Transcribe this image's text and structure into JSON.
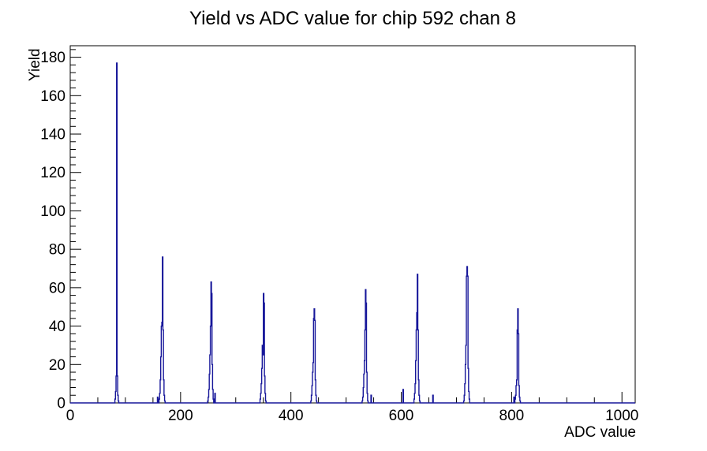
{
  "title": "Yield vs ADC value for chip 592 chan 8",
  "axes": {
    "x": {
      "label": "ADC value",
      "min": 0,
      "max": 1024,
      "major_ticks": [
        0,
        200,
        400,
        600,
        800,
        1000
      ],
      "minor_step": 50
    },
    "y": {
      "label": "Yield",
      "min": 0,
      "max": 186,
      "major_ticks": [
        0,
        20,
        40,
        60,
        80,
        100,
        120,
        140,
        160,
        180
      ],
      "minor_step": 4
    }
  },
  "style": {
    "line_color": "#17179a",
    "frame_color": "#000000",
    "text_color": "#000000",
    "background": "#ffffff"
  },
  "chart_data": {
    "type": "bar",
    "title": "Yield vs ADC value for chip 592 chan 8",
    "xlabel": "ADC value",
    "ylabel": "Yield",
    "xlim": [
      0,
      1024
    ],
    "ylim": [
      0,
      186
    ],
    "grid": false,
    "legend": false,
    "bin_width": 1,
    "peaks": [
      {
        "center": 84,
        "height": 177
      },
      {
        "center": 167,
        "height": 76
      },
      {
        "center": 255,
        "height": 63
      },
      {
        "center": 350,
        "height": 57
      },
      {
        "center": 442,
        "height": 49
      },
      {
        "center": 535,
        "height": 59
      },
      {
        "center": 629,
        "height": 67
      },
      {
        "center": 719,
        "height": 71
      },
      {
        "center": 811,
        "height": 49
      }
    ],
    "bins": [
      [
        81,
        2
      ],
      [
        82,
        6
      ],
      [
        83,
        14
      ],
      [
        84,
        177
      ],
      [
        85,
        14
      ],
      [
        86,
        4
      ],
      [
        87,
        1
      ],
      [
        158,
        3
      ],
      [
        161,
        2
      ],
      [
        162,
        5
      ],
      [
        163,
        12
      ],
      [
        164,
        24
      ],
      [
        165,
        40
      ],
      [
        166,
        42
      ],
      [
        167,
        76
      ],
      [
        168,
        38
      ],
      [
        169,
        12
      ],
      [
        170,
        4
      ],
      [
        171,
        1
      ],
      [
        249,
        1
      ],
      [
        250,
        3
      ],
      [
        251,
        7
      ],
      [
        252,
        15
      ],
      [
        253,
        25
      ],
      [
        254,
        40
      ],
      [
        255,
        63
      ],
      [
        256,
        57
      ],
      [
        257,
        20
      ],
      [
        258,
        7
      ],
      [
        259,
        2
      ],
      [
        262,
        5
      ],
      [
        344,
        2
      ],
      [
        345,
        5
      ],
      [
        346,
        10
      ],
      [
        347,
        18
      ],
      [
        348,
        30
      ],
      [
        349,
        25
      ],
      [
        350,
        57
      ],
      [
        351,
        52
      ],
      [
        352,
        14
      ],
      [
        353,
        5
      ],
      [
        354,
        1
      ],
      [
        436,
        1
      ],
      [
        437,
        4
      ],
      [
        438,
        9
      ],
      [
        439,
        16
      ],
      [
        440,
        21
      ],
      [
        441,
        44
      ],
      [
        442,
        49
      ],
      [
        443,
        43
      ],
      [
        444,
        12
      ],
      [
        445,
        4
      ],
      [
        446,
        1
      ],
      [
        529,
        1
      ],
      [
        530,
        3
      ],
      [
        531,
        8
      ],
      [
        532,
        15
      ],
      [
        533,
        22
      ],
      [
        534,
        38
      ],
      [
        535,
        59
      ],
      [
        536,
        52
      ],
      [
        537,
        16
      ],
      [
        538,
        5
      ],
      [
        539,
        1
      ],
      [
        545,
        4
      ],
      [
        603,
        7
      ],
      [
        623,
        2
      ],
      [
        624,
        5
      ],
      [
        625,
        10
      ],
      [
        626,
        22
      ],
      [
        627,
        38
      ],
      [
        628,
        47
      ],
      [
        629,
        67
      ],
      [
        630,
        38
      ],
      [
        631,
        12
      ],
      [
        632,
        4
      ],
      [
        633,
        1
      ],
      [
        657,
        4
      ],
      [
        713,
        1
      ],
      [
        714,
        4
      ],
      [
        715,
        10
      ],
      [
        716,
        20
      ],
      [
        717,
        30
      ],
      [
        718,
        66
      ],
      [
        719,
        71
      ],
      [
        720,
        66
      ],
      [
        721,
        18
      ],
      [
        722,
        6
      ],
      [
        723,
        2
      ],
      [
        804,
        3
      ],
      [
        806,
        2
      ],
      [
        807,
        4
      ],
      [
        808,
        9
      ],
      [
        809,
        12
      ],
      [
        810,
        38
      ],
      [
        811,
        49
      ],
      [
        812,
        36
      ],
      [
        813,
        9
      ],
      [
        814,
        3
      ],
      [
        815,
        1
      ]
    ]
  }
}
